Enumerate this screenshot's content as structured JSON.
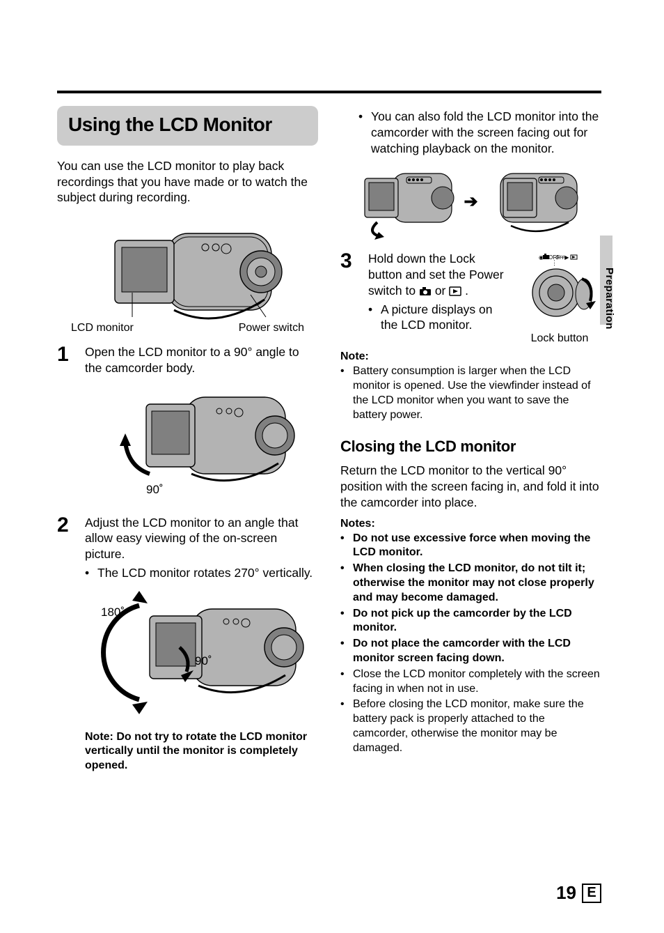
{
  "colors": {
    "heading_bg": "#cccccc",
    "text": "#000000",
    "page_bg": "#ffffff",
    "rule": "#000000"
  },
  "typography": {
    "body_pt": 13,
    "heading_pt": 22,
    "step_num_pt": 24,
    "note_pt": 12
  },
  "side_tab": "Preparation",
  "page_number": "19",
  "page_letter": "E",
  "heading": "Using the LCD Monitor",
  "intro": "You can use the LCD monitor to play back recordings that you have made or to watch the subject during recording.",
  "fig1": {
    "label_left": "LCD monitor",
    "label_right": "Power switch"
  },
  "steps": {
    "1": {
      "num": "1",
      "text": "Open the LCD monitor to a 90° angle to the camcorder body.",
      "angle": "90˚"
    },
    "2": {
      "num": "2",
      "text": "Adjust the LCD monitor to an angle that allow easy viewing of the on-screen picture.",
      "bullet": "The LCD monitor rotates 270° vertically.",
      "angle_a": "180˚",
      "angle_b": "90˚",
      "note": "Note: Do not try to rotate the LCD monitor vertically until the monitor is completely opened."
    },
    "3": {
      "num": "3",
      "pre_bullet": "You can also fold the LCD monitor into the camcorder with the screen facing out for watching playback on the monitor.",
      "text1": "Hold down the Lock button and set the Power switch to ",
      "text2": " or ",
      "text3": ".",
      "bullet": "A picture displays on the LCD monitor.",
      "label": "Lock button"
    }
  },
  "note_block": {
    "head": "Note:",
    "items": [
      "Battery consumption is larger when the LCD monitor is opened. Use the viewfinder instead of the LCD monitor when you want to save the battery power."
    ]
  },
  "closing": {
    "heading": "Closing the LCD monitor",
    "body": "Return the LCD monitor to the vertical 90° position with the screen facing in, and fold it into the camcorder into place.",
    "notes_head": "Notes:",
    "notes": [
      {
        "text": "Do not use excessive force when moving the LCD monitor.",
        "bold": true
      },
      {
        "text": "When closing the LCD monitor, do not tilt it; otherwise the monitor may not close properly and may become damaged.",
        "bold": true
      },
      {
        "text": "Do not pick up the camcorder by the LCD monitor.",
        "bold": true
      },
      {
        "text": "Do not place the camcorder with the LCD monitor screen facing down.",
        "bold": true
      },
      {
        "text": "Close the LCD monitor completely with the screen facing in when not in use.",
        "bold": false
      },
      {
        "text": "Before closing the LCD monitor, make sure the battery pack is properly attached to the camcorder, otherwise the monitor may be damaged.",
        "bold": false
      }
    ]
  },
  "illustration": {
    "body_fill": "#b3b3b3",
    "body_stroke": "#000000",
    "screen_fill": "#808080",
    "screen_stroke": "#000000",
    "lens_fill": "#808080",
    "stroke_width": 1.4
  }
}
